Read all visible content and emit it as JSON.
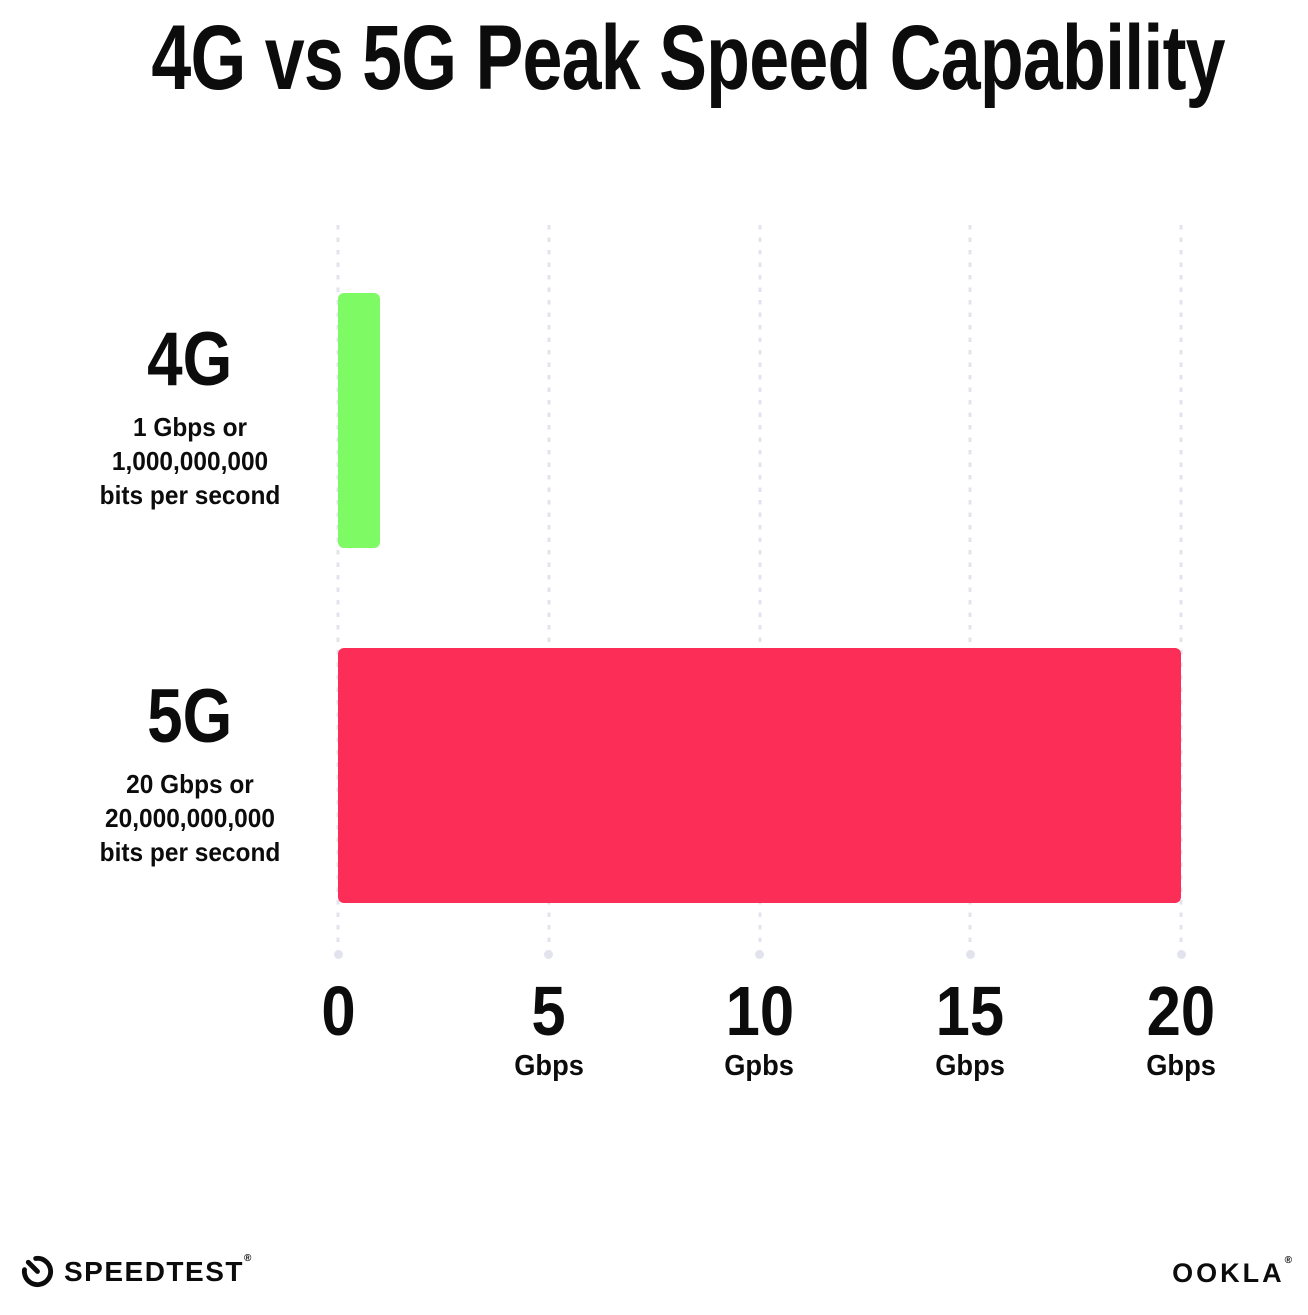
{
  "chart_data": {
    "type": "bar",
    "orientation": "horizontal",
    "title": "4G vs 5G Peak Speed Capability",
    "categories": [
      "4G",
      "5G"
    ],
    "values": [
      1,
      20
    ],
    "unit": "Gbps",
    "xlabel": "",
    "ylabel": "",
    "xlim": [
      0,
      20
    ],
    "grid": "vertical dotted gridlines at 0, 5, 10, 15, 20 with terminal dots at baseline",
    "legend": "none",
    "bar_colors": [
      "#7dfa64",
      "#fc2d57"
    ],
    "rows": [
      {
        "name": "4G",
        "value_gbps": 1,
        "sublabel_lines": [
          "1 Gbps or",
          "1,000,000,000",
          "bits per second"
        ]
      },
      {
        "name": "5G",
        "value_gbps": 20,
        "sublabel_lines": [
          "20 Gbps or",
          "20,000,000,000",
          "bits per second"
        ]
      }
    ],
    "x_ticks": [
      {
        "value": 0,
        "label": "0",
        "unit": ""
      },
      {
        "value": 5,
        "label": "5",
        "unit": "Gbps"
      },
      {
        "value": 10,
        "label": "10",
        "unit": "Gpbs"
      },
      {
        "value": 15,
        "label": "15",
        "unit": "Gbps"
      },
      {
        "value": 20,
        "label": "20",
        "unit": "Gbps"
      }
    ]
  },
  "colors": {
    "background": "#ffffff",
    "text": "#0c0c0c",
    "gridline": "#e3e3ed",
    "bar_4g": "#7dfa64",
    "bar_5g": "#fc2d57"
  },
  "footer": {
    "speedtest_label": "SPEEDTEST",
    "speedtest_trademark": "®",
    "ookla_label": "OOKLA",
    "ookla_trademark": "®"
  }
}
